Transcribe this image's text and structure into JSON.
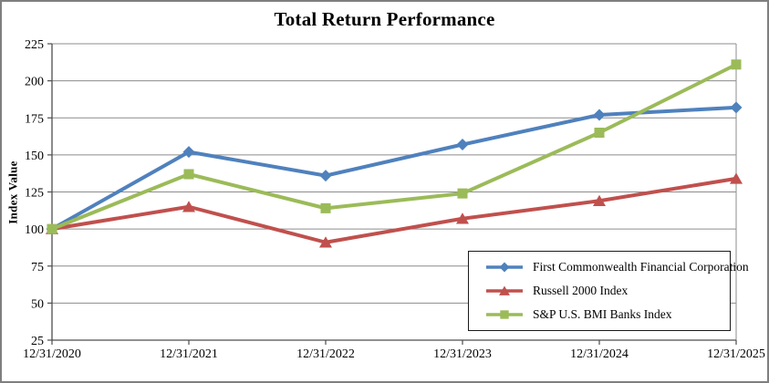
{
  "chart_data": {
    "type": "line",
    "title": "Total Return Performance",
    "xlabel": "",
    "ylabel": "Index Value",
    "categories": [
      "12/31/2020",
      "12/31/2021",
      "12/31/2022",
      "12/31/2023",
      "12/31/2024",
      "12/31/2025"
    ],
    "y_ticks": [
      25,
      50,
      75,
      100,
      125,
      150,
      175,
      200,
      225
    ],
    "ylim": [
      25,
      225
    ],
    "grid": true,
    "legend_position": "inside-bottom-right",
    "series": [
      {
        "name": "First Commonwealth Financial Corporation",
        "color": "#4F81BD",
        "marker": "diamond",
        "values": [
          100,
          152,
          136,
          157,
          177,
          182
        ]
      },
      {
        "name": "Russell 2000 Index",
        "color": "#C0504D",
        "marker": "triangle",
        "values": [
          100,
          115,
          91,
          107,
          119,
          134
        ]
      },
      {
        "name": "S&P U.S. BMI Banks Index",
        "color": "#9BBB59",
        "marker": "square",
        "values": [
          100,
          137,
          114,
          124,
          165,
          211
        ]
      }
    ],
    "style": {
      "gridline_color": "#8c8c8c",
      "axis_color": "#4d4d4d",
      "plot_border_color": "#8c8c8c",
      "figure_border_color": "#7f7f7f",
      "text_color": "#000000"
    }
  }
}
